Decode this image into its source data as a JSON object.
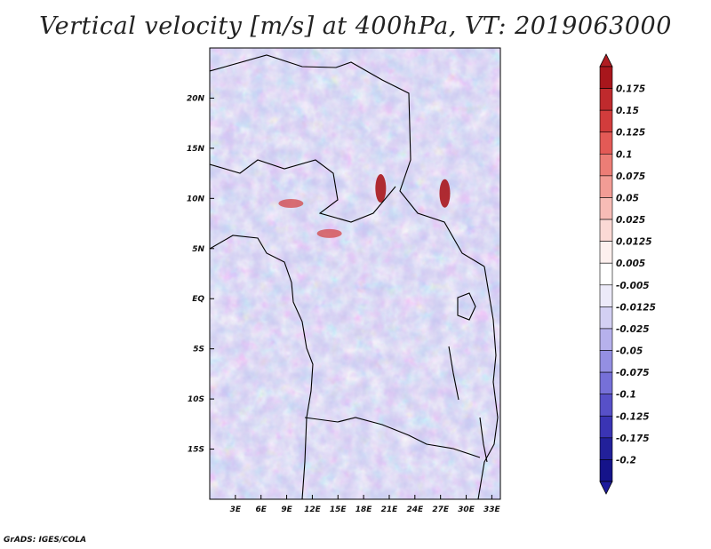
{
  "title": "Vertical velocity [m/s] at 400hPa, VT: 2019063000",
  "footer": "GrADS: IGES/COLA",
  "map": {
    "lon_range": [
      0,
      34
    ],
    "lat_range": [
      -20,
      25
    ],
    "x_ticks": [
      "3E",
      "6E",
      "9E",
      "12E",
      "15E",
      "18E",
      "21E",
      "24E",
      "27E",
      "30E",
      "33E"
    ],
    "y_ticks": [
      "20N",
      "15N",
      "10N",
      "5N",
      "EQ",
      "5S",
      "10S",
      "15S"
    ],
    "features": [
      {
        "label": "strong ascent",
        "lon": 20,
        "lat": 11
      },
      {
        "label": "strong ascent",
        "lon": 27.5,
        "lat": 10.5
      },
      {
        "label": "ascent band",
        "lon": 9.5,
        "lat": 9.5
      },
      {
        "label": "ascent band",
        "lon": 14,
        "lat": 6.5
      }
    ]
  },
  "colorbar": {
    "labels": [
      "0.175",
      "0.15",
      "0.125",
      "0.1",
      "0.075",
      "0.05",
      "0.025",
      "0.0125",
      "0.005",
      "-0.005",
      "-0.0125",
      "-0.025",
      "-0.05",
      "-0.075",
      "-0.1",
      "-0.125",
      "-0.175",
      "-0.2"
    ],
    "colors": [
      "#a8161c",
      "#bf2a2d",
      "#d23c3c",
      "#e35a56",
      "#ec7d76",
      "#f29c95",
      "#f7bcb6",
      "#fbd9d5",
      "#fdf0ee",
      "#ffffff",
      "#eceaf9",
      "#d3d0f3",
      "#b6b1ec",
      "#948fe2",
      "#7670d8",
      "#5750c8",
      "#3a34b4",
      "#22209a",
      "#15138a"
    ],
    "max_color": "#b01d22",
    "min_color": "#1d1b9c"
  }
}
